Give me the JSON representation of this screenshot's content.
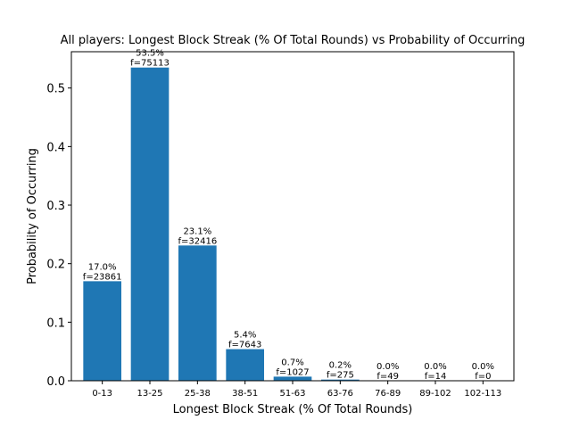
{
  "chart_data": {
    "type": "bar",
    "title": "All players: Longest Block Streak (% Of Total Rounds) vs Probability of Occurring",
    "xlabel": "Longest Block Streak (% Of Total Rounds)",
    "ylabel": "Probability of Occurring",
    "categories": [
      "0-13",
      "13-25",
      "25-38",
      "38-51",
      "51-63",
      "63-76",
      "76-89",
      "89-102",
      "102-113"
    ],
    "values": [
      0.17,
      0.535,
      0.231,
      0.054,
      0.007,
      0.002,
      0.0,
      0.0,
      0.0
    ],
    "percent_labels": [
      "17.0%",
      "53.5%",
      "23.1%",
      "5.4%",
      "0.7%",
      "0.2%",
      "0.0%",
      "0.0%",
      "0.0%"
    ],
    "freq_labels": [
      "f=23861",
      "f=75113",
      "f=32416",
      "f=7643",
      "f=1027",
      "f=275",
      "f=49",
      "f=14",
      "f=0"
    ],
    "yticks": [
      0.0,
      0.1,
      0.2,
      0.3,
      0.4,
      0.5
    ],
    "ytick_labels": [
      "0.0",
      "0.1",
      "0.2",
      "0.3",
      "0.4",
      "0.5"
    ],
    "ylim": [
      0,
      0.562
    ],
    "bar_color": "#1f77b4",
    "grid": false,
    "legend": false
  }
}
